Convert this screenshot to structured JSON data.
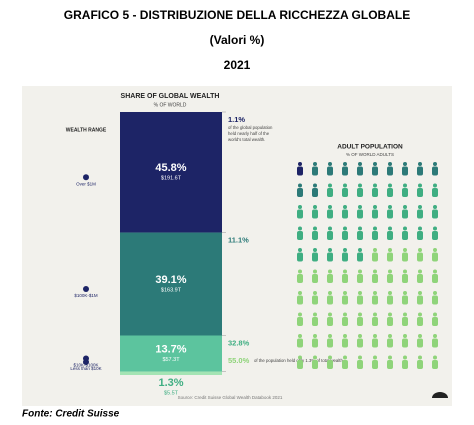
{
  "header": {
    "title": "GRAFICO 5 - DISTRIBUZIONE DELLA RICCHEZZA GLOBALE",
    "subtitle": "(Valori %)",
    "year": "2021"
  },
  "chart_data": {
    "type": "stacked-column",
    "title": "SHARE OF GLOBAL WEALTH",
    "subtitle": "% OF WORLD",
    "axis_label": "WEALTH RANGE",
    "categories": [
      "Over $1M",
      "$100K-$1M",
      "$10K-$100K",
      "Less than $10K"
    ],
    "values": [
      45.8,
      39.1,
      13.7,
      1.3
    ],
    "value_labels": [
      "45.8%",
      "39.1%",
      "13.7%",
      "1.3%"
    ],
    "amounts": [
      191.6,
      163.9,
      57.3,
      5.5
    ],
    "amount_labels": [
      "$191.6T",
      "$163.9T",
      "$57.3T",
      "$5.5T"
    ],
    "colors": [
      "#1d2466",
      "#2c7a78",
      "#5cc49e",
      "#a4e4b4"
    ],
    "population": {
      "title": "ADULT POPULATION",
      "subtitle": "% OF WORLD ADULTS",
      "values": [
        1.1,
        11.1,
        32.8,
        55.0
      ],
      "value_labels": [
        "1.1%",
        "11.1%",
        "32.8%",
        "55.0%"
      ],
      "colors": [
        "#1d2466",
        "#2c7a78",
        "#3fae82",
        "#8fd47a"
      ],
      "notes": [
        "of the global population held nearly half of the world's total wealth.",
        "of the population held only 1.3% of total wealth"
      ]
    },
    "source": "Source: Credit Suisse Global Wealth Databook 2021"
  },
  "footer": "Fonte: Credit Suisse"
}
